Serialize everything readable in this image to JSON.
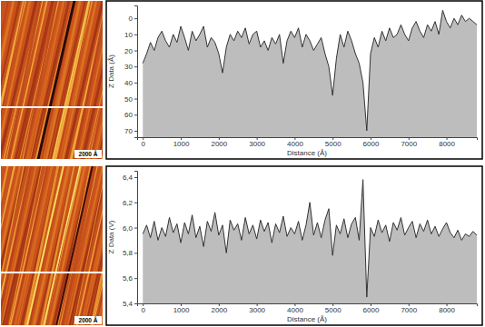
{
  "chart_data": [
    {
      "type": "area",
      "x_label": "Distance (Å)",
      "y_label": "Z Data (Å)",
      "color": "#bdbdbd",
      "annotations": [
        "2000 Å"
      ],
      "xlim": [
        -150,
        8800
      ],
      "xticks": [
        0,
        1000,
        2000,
        3000,
        4000,
        5000,
        6000,
        7000,
        8000
      ],
      "ylim": [
        74,
        -8
      ],
      "yticks": [
        0,
        10,
        20,
        30,
        40,
        50,
        60,
        70
      ],
      "x": [
        0,
        100,
        200,
        300,
        400,
        500,
        600,
        700,
        800,
        900,
        1000,
        1100,
        1200,
        1300,
        1400,
        1500,
        1600,
        1700,
        1800,
        1900,
        2000,
        2100,
        2200,
        2300,
        2400,
        2500,
        2600,
        2700,
        2800,
        2900,
        3000,
        3100,
        3200,
        3300,
        3400,
        3500,
        3600,
        3700,
        3800,
        3900,
        4000,
        4100,
        4200,
        4300,
        4400,
        4500,
        4600,
        4700,
        4800,
        4900,
        5000,
        5100,
        5200,
        5300,
        5400,
        5500,
        5600,
        5700,
        5800,
        5900,
        6000,
        6100,
        6200,
        6300,
        6400,
        6500,
        6600,
        6700,
        6800,
        6900,
        7000,
        7100,
        7200,
        7300,
        7400,
        7500,
        7600,
        7700,
        7800,
        7900,
        8000,
        8100,
        8200,
        8300,
        8400,
        8500,
        8600,
        8700,
        8800
      ],
      "values": [
        28,
        22,
        15,
        20,
        12,
        8,
        14,
        18,
        10,
        15,
        5,
        12,
        20,
        8,
        14,
        10,
        5,
        18,
        12,
        15,
        22,
        34,
        18,
        10,
        14,
        8,
        12,
        6,
        16,
        10,
        8,
        18,
        14,
        20,
        12,
        16,
        10,
        28,
        14,
        8,
        12,
        6,
        18,
        10,
        14,
        20,
        16,
        12,
        22,
        30,
        48,
        25,
        10,
        18,
        8,
        14,
        22,
        28,
        40,
        70,
        22,
        12,
        18,
        8,
        14,
        6,
        12,
        10,
        4,
        10,
        14,
        6,
        2,
        8,
        12,
        4,
        8,
        2,
        10,
        -5,
        2,
        6,
        0,
        4,
        -2,
        2,
        0,
        2,
        4
      ]
    },
    {
      "type": "area",
      "x_label": "Distance (Å)",
      "y_label": "Z Data (V)",
      "color": "#bdbdbd",
      "annotations": [
        "2000 Å"
      ],
      "xlim": [
        -150,
        8800
      ],
      "xticks": [
        0,
        1000,
        2000,
        3000,
        4000,
        5000,
        6000,
        7000,
        8000
      ],
      "ylim": [
        5.4,
        6.45
      ],
      "yticks": [
        {
          "value": 5.4,
          "label": "5,4"
        },
        {
          "value": 5.6,
          "label": "5,6"
        },
        {
          "value": 5.8,
          "label": "5,8"
        },
        {
          "value": 6.0,
          "label": "6,0"
        },
        {
          "value": 6.2,
          "label": "6,2"
        },
        {
          "value": 6.4,
          "label": "6,4"
        }
      ],
      "x": [
        0,
        100,
        200,
        300,
        400,
        500,
        600,
        700,
        800,
        900,
        1000,
        1100,
        1200,
        1300,
        1400,
        1500,
        1600,
        1700,
        1800,
        1900,
        2000,
        2100,
        2200,
        2300,
        2400,
        2500,
        2600,
        2700,
        2800,
        2900,
        3000,
        3100,
        3200,
        3300,
        3400,
        3500,
        3600,
        3700,
        3800,
        3900,
        4000,
        4100,
        4200,
        4300,
        4400,
        4500,
        4600,
        4700,
        4800,
        4900,
        5000,
        5100,
        5200,
        5300,
        5400,
        5500,
        5600,
        5700,
        5800,
        5900,
        6000,
        6100,
        6200,
        6300,
        6400,
        6500,
        6600,
        6700,
        6800,
        6900,
        7000,
        7100,
        7200,
        7300,
        7400,
        7500,
        7600,
        7700,
        7800,
        7900,
        8000,
        8100,
        8200,
        8300,
        8400,
        8500,
        8600,
        8700,
        8800
      ],
      "values": [
        5.95,
        6.02,
        5.92,
        6.05,
        5.9,
        6.0,
        5.93,
        6.08,
        5.96,
        6.03,
        5.88,
        6.04,
        5.95,
        6.1,
        5.92,
        6.01,
        5.85,
        6.05,
        5.97,
        6.12,
        5.94,
        6.02,
        5.8,
        6.06,
        5.98,
        6.03,
        5.9,
        6.08,
        5.95,
        6.02,
        5.91,
        6.06,
        5.97,
        6.04,
        5.88,
        6.03,
        5.96,
        6.09,
        5.93,
        6.0,
        5.95,
        6.05,
        5.9,
        6.02,
        6.2,
        5.94,
        6.04,
        5.92,
        6.06,
        6.15,
        5.78,
        6.02,
        5.95,
        6.07,
        5.92,
        6.03,
        6.08,
        5.9,
        6.38,
        5.45,
        6.0,
        5.93,
        6.06,
        5.96,
        6.02,
        5.89,
        6.04,
        5.98,
        6.08,
        5.94,
        6.0,
        6.05,
        5.92,
        6.03,
        5.97,
        6.06,
        5.95,
        6.01,
        5.93,
        5.99,
        6.04,
        5.96,
        5.92,
        5.98,
        5.9,
        5.95,
        5.93,
        5.97,
        5.94
      ]
    }
  ]
}
